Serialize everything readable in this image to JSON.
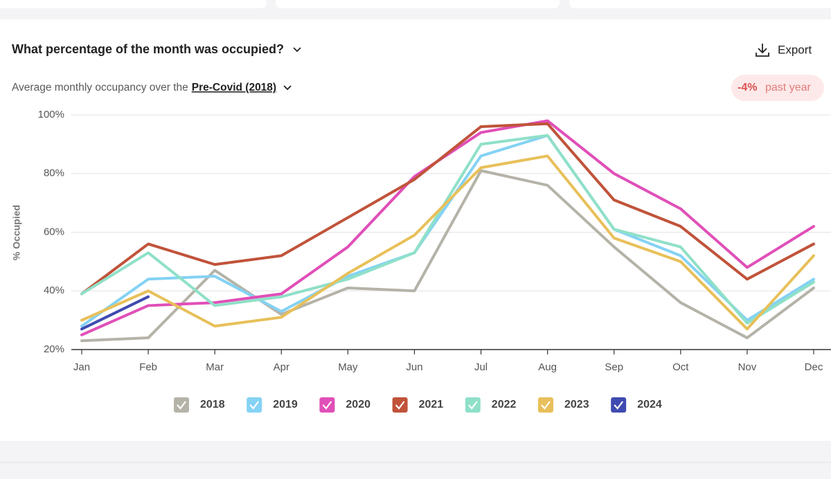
{
  "header": {
    "title": "What percentage of the month was occupied?",
    "export": "Export",
    "subtitle": "Average monthly occupancy over the",
    "period": "Pre-Covid (2018)",
    "badge_value": "-4%",
    "badge_text": "past year"
  },
  "chart_data": {
    "type": "line",
    "y_label": "% Occupied",
    "categories": [
      "Jan",
      "Feb",
      "Mar",
      "Apr",
      "May",
      "Jun",
      "Jul",
      "Aug",
      "Sep",
      "Oct",
      "Nov",
      "Dec"
    ],
    "ylim": [
      20,
      100
    ],
    "yticks": [
      {
        "value": 20,
        "label": "20%"
      },
      {
        "value": 40,
        "label": "40%"
      },
      {
        "value": 60,
        "label": "60%"
      },
      {
        "value": 80,
        "label": "80%"
      },
      {
        "value": 100,
        "label": "100%"
      }
    ],
    "grid": true,
    "series": [
      {
        "name": "2018",
        "color": "#b5b3a8",
        "values": [
          23,
          24,
          47,
          32,
          41,
          40,
          81,
          76,
          55,
          36,
          24,
          41
        ]
      },
      {
        "name": "2019",
        "color": "#84d2f4",
        "values": [
          28,
          44,
          45,
          33,
          45,
          53,
          86,
          93,
          61,
          52,
          30,
          44
        ]
      },
      {
        "name": "2020",
        "color": "#e04fb8",
        "values": [
          25,
          35,
          36,
          39,
          55,
          79,
          94,
          98,
          80,
          68,
          48,
          62
        ]
      },
      {
        "name": "2021",
        "color": "#c0533a",
        "values": [
          39,
          56,
          49,
          52,
          65,
          78,
          96,
          97,
          71,
          62,
          44,
          56
        ]
      },
      {
        "name": "2022",
        "color": "#8fe0c8",
        "values": [
          39,
          53,
          35,
          38,
          44,
          53,
          90,
          93,
          61,
          55,
          29,
          43
        ]
      },
      {
        "name": "2023",
        "color": "#e8c05a",
        "values": [
          30,
          40,
          28,
          31,
          46,
          59,
          82,
          86,
          58,
          50,
          27,
          52
        ]
      },
      {
        "name": "2024",
        "color": "#3f4bb0",
        "values": [
          27,
          38,
          null,
          null,
          null,
          null,
          null,
          null,
          null,
          null,
          null,
          null
        ]
      }
    ]
  }
}
